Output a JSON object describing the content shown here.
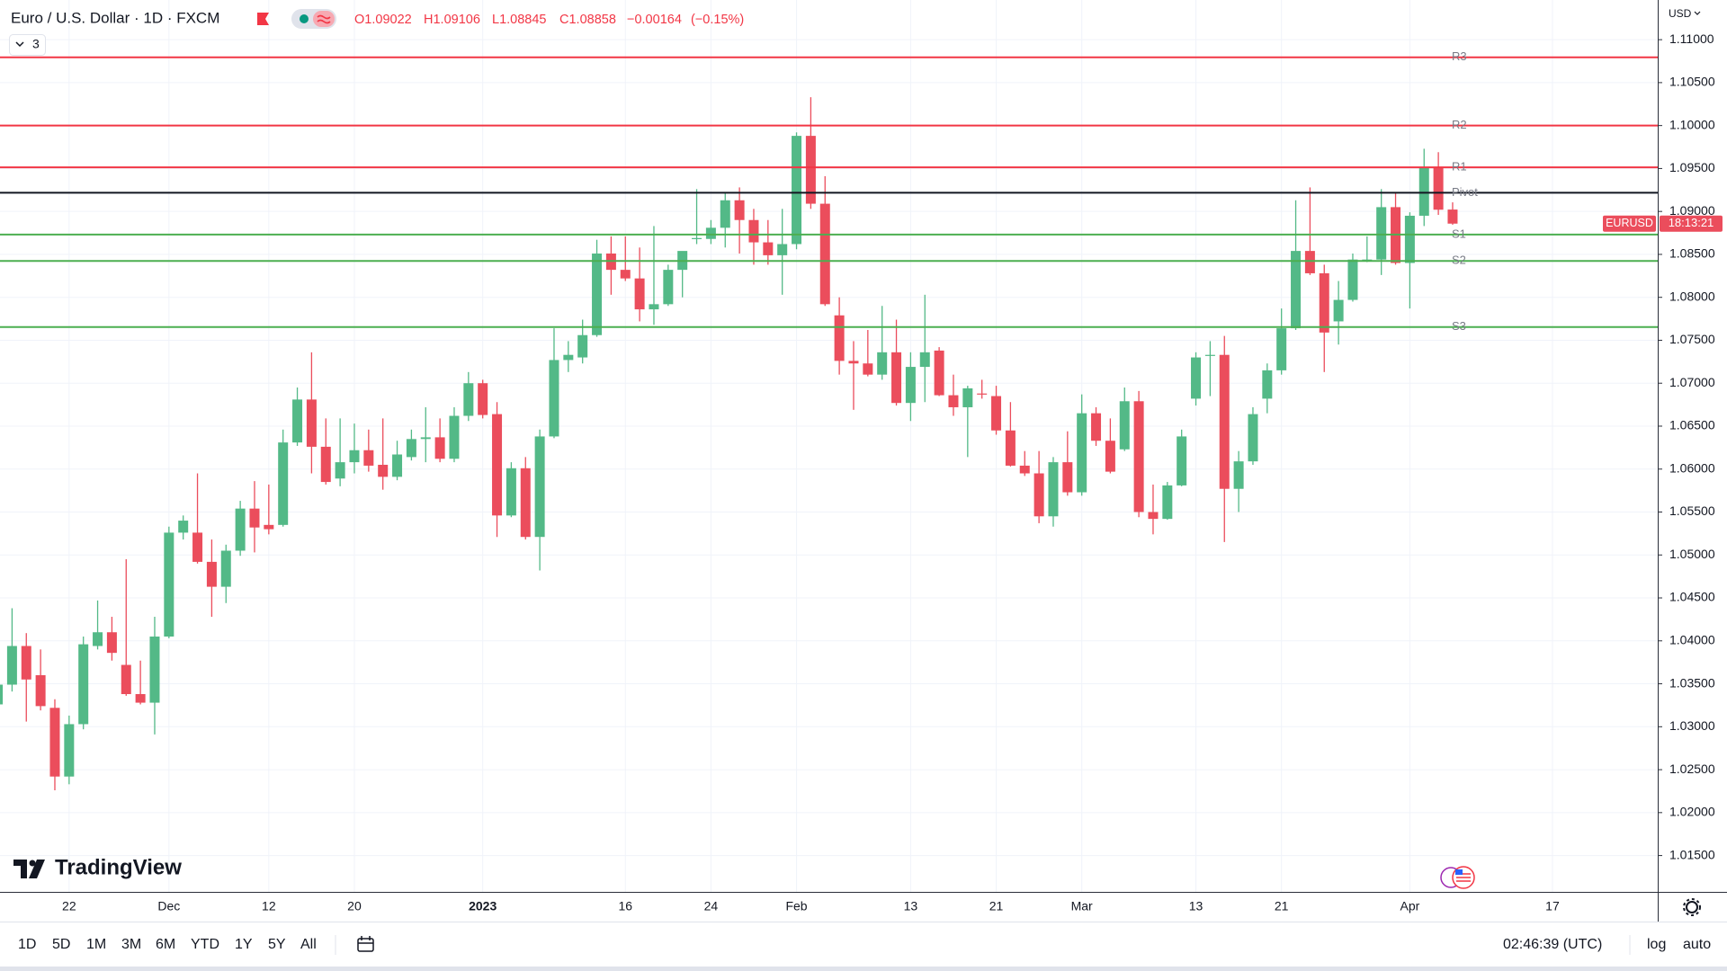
{
  "header": {
    "title": "Euro / U.S. Dollar · 1D · FXCM",
    "indicator_count": "3",
    "ohlc_prefixes": [
      "O",
      "H",
      "L",
      "C"
    ],
    "change": "−0.00164",
    "change_pct": "(−0.15%)"
  },
  "chart_data": {
    "type": "candlestick",
    "categories": [
      null,
      null,
      null,
      null,
      null,
      "22",
      null,
      null,
      null,
      null,
      null,
      null,
      "Dec",
      null,
      null,
      null,
      null,
      null,
      null,
      "12",
      null,
      null,
      null,
      null,
      null,
      "20",
      null,
      null,
      null,
      null,
      null,
      null,
      null,
      null,
      "2023",
      null,
      null,
      null,
      null,
      null,
      null,
      null,
      null,
      null,
      "16",
      null,
      null,
      null,
      null,
      null,
      "24",
      null,
      null,
      null,
      null,
      null,
      "Feb",
      null,
      null,
      null,
      null,
      null,
      null,
      null,
      "13",
      null,
      null,
      null,
      null,
      null,
      "21",
      null,
      null,
      null,
      null,
      null,
      "Mar",
      null,
      null,
      null,
      null,
      null,
      null,
      null,
      "13",
      null,
      null,
      null,
      null,
      null,
      "21",
      null,
      null,
      null,
      null,
      null,
      null,
      null,
      null,
      "Apr",
      null,
      null,
      null,
      null,
      null,
      null,
      null,
      null,
      null,
      "17"
    ],
    "open": [
      1.0326,
      1.0349,
      1.0394,
      1.036,
      1.0322,
      1.0242,
      1.0303,
      1.0394,
      1.041,
      1.0372,
      1.0338,
      1.0328,
      1.0405,
      1.0526,
      1.0526,
      1.0492,
      1.0463,
      1.0505,
      1.0554,
      1.0535,
      1.0535,
      1.0631,
      1.0681,
      1.0626,
      1.0589,
      1.0608,
      1.0622,
      1.0605,
      1.0591,
      1.0614,
      1.0635,
      1.0637,
      1.0612,
      1.0662,
      1.07,
      1.0664,
      1.0546,
      1.0601,
      1.0521,
      1.0638,
      1.0727,
      1.073,
      1.0756,
      1.0851,
      1.0832,
      1.0822,
      1.0786,
      1.0792,
      1.0832,
      1.0868,
      1.0868,
      1.0881,
      1.0913,
      1.089,
      1.0864,
      1.0849,
      1.0862,
      1.0988,
      1.0909,
      1.0779,
      1.0726,
      1.0723,
      1.071,
      1.0736,
      1.0677,
      1.0719,
      1.0738,
      1.0686,
      1.0672,
      1.0688,
      1.0685,
      1.0645,
      1.0604,
      1.0595,
      1.0545,
      1.0608,
      1.0573,
      1.0665,
      1.0633,
      1.0623,
      1.0679,
      1.055,
      1.0542,
      1.0581,
      1.0682,
      1.0732,
      1.0733,
      1.0577,
      1.0609,
      1.0682,
      1.0715,
      1.0764,
      1.0854,
      1.0828,
      1.0772,
      1.0797,
      1.0842,
      1.0844,
      1.0905,
      1.084,
      1.0895,
      1.0951,
      1.09022,
      null,
      null,
      null,
      null,
      null,
      null,
      null
    ],
    "high": [
      1.0364,
      1.0438,
      1.0409,
      1.039,
      1.0332,
      1.0313,
      1.0405,
      1.0447,
      1.0428,
      1.0495,
      1.0377,
      1.0428,
      1.0533,
      1.0546,
      1.0595,
      1.0518,
      1.0512,
      1.0563,
      1.0586,
      1.0582,
      1.0646,
      1.0695,
      1.0736,
      1.0659,
      1.0659,
      1.0653,
      1.0646,
      1.0659,
      1.0633,
      1.0646,
      1.0672,
      1.0659,
      1.0672,
      1.0713,
      1.0704,
      1.0678,
      1.0608,
      1.0614,
      1.0646,
      1.0764,
      1.0749,
      1.0774,
      1.0867,
      1.0871,
      1.0871,
      1.0858,
      1.0883,
      1.0838,
      1.0851,
      1.0926,
      1.089,
      1.0922,
      1.0928,
      1.0903,
      1.089,
      1.0903,
      1.0992,
      1.1033,
      1.0941,
      1.08,
      1.0749,
      1.0762,
      1.079,
      1.0774,
      1.0736,
      1.0803,
      1.0742,
      1.071,
      1.0697,
      1.0704,
      1.0697,
      1.0678,
      1.0621,
      1.0621,
      1.0614,
      1.0644,
      1.0687,
      1.0672,
      1.0659,
      1.0695,
      1.0691,
      1.0582,
      1.0585,
      1.0646,
      1.0736,
      1.0749,
      1.0755,
      1.0621,
      1.0672,
      1.0723,
      1.0787,
      1.0913,
      1.0928,
      1.0838,
      1.0819,
      1.0851,
      1.0871,
      1.0926,
      1.0922,
      1.0899,
      1.0973,
      1.0969,
      1.09106,
      null,
      null,
      null,
      null,
      null,
      null,
      null
    ],
    "low": [
      1.0319,
      1.0341,
      1.0306,
      1.0319,
      1.0226,
      1.0233,
      1.0297,
      1.039,
      1.0377,
      1.0336,
      1.0326,
      1.0291,
      1.0403,
      1.0518,
      1.049,
      1.0428,
      1.0444,
      1.0499,
      1.0503,
      1.0524,
      1.0533,
      1.0627,
      1.0595,
      1.0582,
      1.058,
      1.0595,
      1.0597,
      1.0576,
      1.0587,
      1.061,
      1.0608,
      1.0608,
      1.0608,
      1.0656,
      1.0659,
      1.0521,
      1.0544,
      1.0518,
      1.0482,
      1.0636,
      1.0713,
      1.0723,
      1.0754,
      1.0803,
      1.0819,
      1.0772,
      1.0768,
      1.079,
      1.08,
      1.0862,
      1.0862,
      1.0858,
      1.0851,
      1.0838,
      1.0838,
      1.0803,
      1.0856,
      1.0903,
      1.079,
      1.071,
      1.0669,
      1.0708,
      1.0704,
      1.0674,
      1.0656,
      1.0678,
      1.0685,
      1.0662,
      1.0614,
      1.0682,
      1.064,
      1.0603,
      1.0592,
      1.0537,
      1.0533,
      1.0569,
      1.0569,
      1.0627,
      1.0595,
      1.0621,
      1.0544,
      1.0524,
      1.0541,
      1.058,
      1.0674,
      1.0685,
      1.0515,
      1.055,
      1.0605,
      1.0665,
      1.071,
      1.0762,
      1.0826,
      1.0713,
      1.0745,
      1.0795,
      1.0841,
      1.0826,
      1.0838,
      1.0787,
      1.0883,
      1.0896,
      1.08845,
      null,
      null,
      null,
      null,
      null,
      null,
      null
    ],
    "close": [
      1.0349,
      1.0394,
      1.0355,
      1.0324,
      1.0242,
      1.0303,
      1.0396,
      1.041,
      1.0386,
      1.0338,
      1.0328,
      1.0405,
      1.0526,
      1.054,
      1.0492,
      1.0463,
      1.0505,
      1.0554,
      1.0532,
      1.053,
      1.0631,
      1.0681,
      1.0626,
      1.0585,
      1.0608,
      1.0622,
      1.0604,
      1.0591,
      1.0617,
      1.0635,
      1.0637,
      1.0612,
      1.0662,
      1.07,
      1.0663,
      1.0546,
      1.0601,
      1.0521,
      1.0638,
      1.0727,
      1.0733,
      1.0756,
      1.0851,
      1.0832,
      1.0822,
      1.0786,
      1.0792,
      1.0832,
      1.0854,
      1.0869,
      1.0881,
      1.0913,
      1.089,
      1.0864,
      1.0849,
      1.0862,
      1.0988,
      1.0909,
      1.0792,
      1.0726,
      1.0723,
      1.071,
      1.0736,
      1.0677,
      1.0719,
      1.0736,
      1.0686,
      1.0672,
      1.0694,
      1.0687,
      1.0645,
      1.0604,
      1.0595,
      1.0545,
      1.0608,
      1.0573,
      1.0665,
      1.0633,
      1.0597,
      1.0679,
      1.055,
      1.0542,
      1.0581,
      1.0638,
      1.073,
      1.0733,
      1.0577,
      1.0609,
      1.0664,
      1.0715,
      1.0764,
      1.0854,
      1.0828,
      1.0759,
      1.0797,
      1.0844,
      1.0844,
      1.0905,
      1.084,
      1.0895,
      1.0951,
      1.0902,
      1.08858,
      null,
      null,
      null,
      null,
      null,
      null,
      null
    ],
    "up_color": "#53b987",
    "down_color": "#eb4d5c",
    "ylim": [
      1.01077,
      1.11462
    ],
    "yticks": [
      {
        "value": 1.015,
        "label": "1.01500"
      },
      {
        "value": 1.02,
        "label": "1.02000"
      },
      {
        "value": 1.025,
        "label": "1.02500"
      },
      {
        "value": 1.03,
        "label": "1.03000"
      },
      {
        "value": 1.035,
        "label": "1.03500"
      },
      {
        "value": 1.04,
        "label": "1.04000"
      },
      {
        "value": 1.045,
        "label": "1.04500"
      },
      {
        "value": 1.05,
        "label": "1.05000"
      },
      {
        "value": 1.055,
        "label": "1.05500"
      },
      {
        "value": 1.06,
        "label": "1.06000"
      },
      {
        "value": 1.065,
        "label": "1.06500"
      },
      {
        "value": 1.07,
        "label": "1.07000"
      },
      {
        "value": 1.075,
        "label": "1.07500"
      },
      {
        "value": 1.08,
        "label": "1.08000"
      },
      {
        "value": 1.085,
        "label": "1.08500"
      },
      {
        "value": 1.09,
        "label": "1.09000"
      },
      {
        "value": 1.095,
        "label": "1.09500"
      },
      {
        "value": 1.1,
        "label": "1.10000"
      },
      {
        "value": 1.105,
        "label": "1.10500"
      },
      {
        "value": 1.11,
        "label": "1.11000"
      }
    ],
    "grid": true,
    "currency": "USD",
    "levels": [
      {
        "label": "R3",
        "value": 1.10795,
        "color": "#f23645"
      },
      {
        "label": "R2",
        "value": 1.1,
        "color": "#f23645"
      },
      {
        "label": "R1",
        "value": 1.09513,
        "color": "#f23645"
      },
      {
        "label": "Pivot",
        "value": 1.09218,
        "color": "#131722"
      },
      {
        "label": "S1",
        "value": 1.08731,
        "color": "#4caf50"
      },
      {
        "label": "S2",
        "value": 1.08423,
        "color": "#4caf50"
      },
      {
        "label": "S3",
        "value": 1.07654,
        "color": "#4caf50"
      }
    ],
    "last_price_tag": {
      "symbol": "EURUSD",
      "countdown": "18:13:21"
    }
  },
  "branding": "TradingView",
  "toolbar": {
    "ranges": [
      "1D",
      "5D",
      "1M",
      "3M",
      "6M",
      "YTD",
      "1Y",
      "5Y",
      "All"
    ],
    "clock": "02:46:39 (UTC)",
    "log": "log",
    "auto": "auto"
  }
}
